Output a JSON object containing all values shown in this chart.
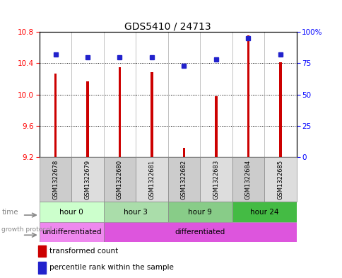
{
  "title": "GDS5410 / 24713",
  "samples": [
    "GSM1322678",
    "GSM1322679",
    "GSM1322680",
    "GSM1322681",
    "GSM1322682",
    "GSM1322683",
    "GSM1322684",
    "GSM1322685"
  ],
  "transformed_count": [
    10.27,
    10.17,
    10.35,
    10.29,
    9.32,
    9.98,
    10.76,
    10.41
  ],
  "percentile_rank": [
    82,
    80,
    80,
    80,
    73,
    78,
    95,
    82
  ],
  "ylim_left": [
    9.2,
    10.8
  ],
  "yticks_left": [
    9.2,
    9.6,
    10.0,
    10.4,
    10.8
  ],
  "yticks_right": [
    0,
    25,
    50,
    75,
    100
  ],
  "bar_color": "#cc0000",
  "dot_color": "#2222cc",
  "bar_bottom": 9.2,
  "time_groups": [
    {
      "label": "hour 0",
      "start": 0,
      "end": 2,
      "color": "#ccffcc"
    },
    {
      "label": "hour 3",
      "start": 2,
      "end": 4,
      "color": "#aaddaa"
    },
    {
      "label": "hour 9",
      "start": 4,
      "end": 6,
      "color": "#88cc88"
    },
    {
      "label": "hour 24",
      "start": 6,
      "end": 8,
      "color": "#44bb44"
    }
  ],
  "growth_groups": [
    {
      "label": "undifferentiated",
      "start": 0,
      "end": 2,
      "color": "#ee88ee"
    },
    {
      "label": "differentiated",
      "start": 2,
      "end": 8,
      "color": "#dd55dd"
    }
  ],
  "legend_items": [
    {
      "label": "transformed count",
      "color": "#cc0000"
    },
    {
      "label": "percentile rank within the sample",
      "color": "#2222cc"
    }
  ],
  "grid_color": "black",
  "grid_style": "dotted",
  "bar_width": 0.08
}
